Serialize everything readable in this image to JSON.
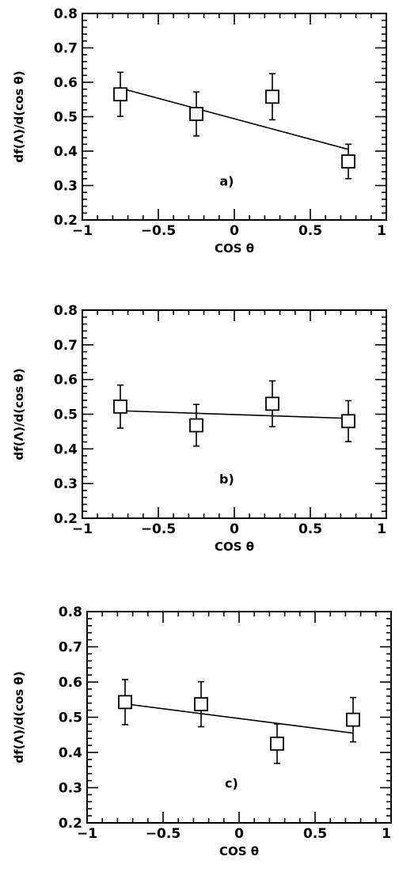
{
  "chart_data": [
    {
      "type": "scatter",
      "panel_label": "a)",
      "xlabel": "COS θ",
      "ylabel": "df(Λ)/d(cos θ)",
      "xlim": [
        -1,
        1
      ],
      "ylim": [
        0.2,
        0.8
      ],
      "x_ticks": [
        "−1",
        "−0.5",
        "0",
        "0.5",
        "1"
      ],
      "y_ticks": [
        "0.2",
        "0.3",
        "0.4",
        "0.5",
        "0.6",
        "0.7",
        "0.8"
      ],
      "points": [
        {
          "x": -0.75,
          "y": 0.565,
          "err": 0.064
        },
        {
          "x": -0.25,
          "y": 0.508,
          "err": 0.064
        },
        {
          "x": 0.25,
          "y": 0.558,
          "err": 0.067
        },
        {
          "x": 0.75,
          "y": 0.37,
          "err": 0.05
        }
      ],
      "fit_line": {
        "x": [
          -0.75,
          0.75
        ],
        "y": [
          0.583,
          0.405
        ]
      }
    },
    {
      "type": "scatter",
      "panel_label": "b)",
      "xlabel": "COS θ",
      "ylabel": "df(Λ)/d(cos θ)",
      "xlim": [
        -1,
        1
      ],
      "ylim": [
        0.2,
        0.8
      ],
      "x_ticks": [
        "−1",
        "−0.5",
        "0",
        "0.5",
        "1"
      ],
      "y_ticks": [
        "0.2",
        "0.3",
        "0.4",
        "0.5",
        "0.6",
        "0.7",
        "0.8"
      ],
      "points": [
        {
          "x": -0.75,
          "y": 0.522,
          "err": 0.062
        },
        {
          "x": -0.25,
          "y": 0.468,
          "err": 0.06
        },
        {
          "x": 0.25,
          "y": 0.53,
          "err": 0.066
        },
        {
          "x": 0.75,
          "y": 0.48,
          "err": 0.059
        }
      ],
      "fit_line": {
        "x": [
          -0.75,
          0.75
        ],
        "y": [
          0.51,
          0.488
        ]
      }
    },
    {
      "type": "scatter",
      "panel_label": "c)",
      "xlabel": "COS θ",
      "ylabel": "df(Λ)/d(cos θ)",
      "xlim": [
        -1,
        1
      ],
      "ylim": [
        0.2,
        0.8
      ],
      "x_ticks": [
        "−1",
        "−0.5",
        "0",
        "0.5",
        "1"
      ],
      "y_ticks": [
        "0.2",
        "0.3",
        "0.4",
        "0.5",
        "0.6",
        "0.7",
        "0.8"
      ],
      "points": [
        {
          "x": -0.75,
          "y": 0.543,
          "err": 0.064
        },
        {
          "x": -0.25,
          "y": 0.537,
          "err": 0.064
        },
        {
          "x": 0.25,
          "y": 0.425,
          "err": 0.056
        },
        {
          "x": 0.75,
          "y": 0.493,
          "err": 0.063
        }
      ],
      "fit_line": {
        "x": [
          -0.75,
          0.75
        ],
        "y": [
          0.538,
          0.455
        ]
      }
    }
  ]
}
